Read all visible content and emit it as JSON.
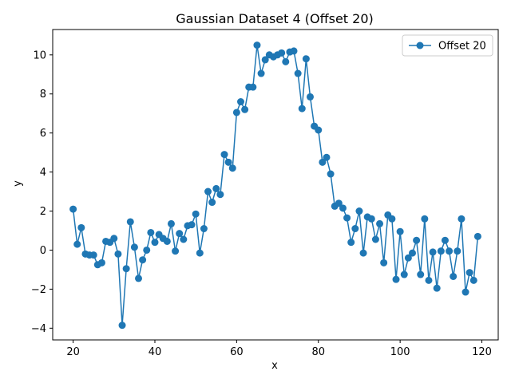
{
  "chart_data": {
    "type": "line",
    "title": "Gaussian Dataset 4 (Offset 20)",
    "xlabel": "x",
    "ylabel": "y",
    "xlim": [
      15,
      124
    ],
    "ylim": [
      -4.6,
      11.3
    ],
    "xticks": [
      20,
      40,
      60,
      80,
      100,
      120
    ],
    "yticks": [
      -4,
      -2,
      0,
      2,
      4,
      6,
      8,
      10
    ],
    "grid": false,
    "legend_position": "top-right",
    "color": "#1f77b4",
    "marker": "circle",
    "series": [
      {
        "name": "Offset 20",
        "x": [
          20,
          21,
          22,
          23,
          24,
          25,
          26,
          27,
          28,
          29,
          30,
          31,
          32,
          33,
          34,
          35,
          36,
          37,
          38,
          39,
          40,
          41,
          42,
          43,
          44,
          45,
          46,
          47,
          48,
          49,
          50,
          51,
          52,
          53,
          54,
          55,
          56,
          57,
          58,
          59,
          60,
          61,
          62,
          63,
          64,
          65,
          66,
          67,
          68,
          69,
          70,
          71,
          72,
          73,
          74,
          75,
          76,
          77,
          78,
          79,
          80,
          81,
          82,
          83,
          84,
          85,
          86,
          87,
          88,
          89,
          90,
          91,
          92,
          93,
          94,
          95,
          96,
          97,
          98,
          99,
          100,
          101,
          102,
          103,
          104,
          105,
          106,
          107,
          108,
          109,
          110,
          111,
          112,
          113,
          114,
          115,
          116,
          117,
          118,
          119
        ],
        "y": [
          2.1,
          0.3,
          1.15,
          -0.2,
          -0.25,
          -0.25,
          -0.75,
          -0.65,
          0.45,
          0.4,
          0.6,
          -0.2,
          -3.85,
          -0.95,
          1.45,
          0.15,
          -1.45,
          -0.5,
          0.0,
          0.9,
          0.4,
          0.8,
          0.6,
          0.45,
          1.35,
          -0.05,
          0.85,
          0.55,
          1.25,
          1.3,
          1.85,
          -0.15,
          1.1,
          3.0,
          2.45,
          3.15,
          2.85,
          4.9,
          4.5,
          4.2,
          7.05,
          7.6,
          7.2,
          8.35,
          8.35,
          10.5,
          9.05,
          9.75,
          10.0,
          9.9,
          10.0,
          10.1,
          9.65,
          10.15,
          10.2,
          9.05,
          7.25,
          9.8,
          7.85,
          6.35,
          6.15,
          4.5,
          4.75,
          3.9,
          2.25,
          2.4,
          2.15,
          1.65,
          0.4,
          1.1,
          2.0,
          -0.15,
          1.7,
          1.6,
          0.55,
          1.35,
          -0.65,
          1.8,
          1.6,
          -1.5,
          0.95,
          -1.25,
          -0.4,
          -0.15,
          0.5,
          -1.25,
          1.6,
          -1.55,
          -0.1,
          -1.95,
          -0.05,
          0.5,
          -0.05,
          -1.35,
          -0.05,
          1.6,
          -2.15,
          -1.15,
          -1.55,
          0.7
        ]
      }
    ]
  }
}
